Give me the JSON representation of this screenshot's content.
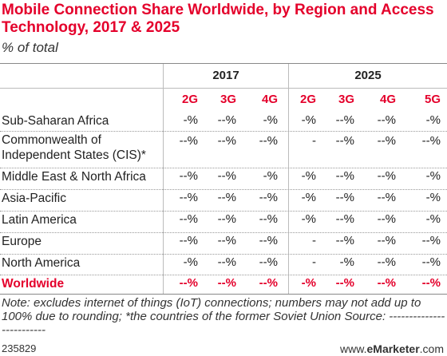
{
  "header": {
    "title": "Mobile Connection Share Worldwide, by Region and Access Technology, 2017 & 2025",
    "subtitle": "% of total"
  },
  "table": {
    "years": [
      "2017",
      "2025"
    ],
    "columns": [
      "2G",
      "3G",
      "4G",
      "2G",
      "3G",
      "4G",
      "5G"
    ],
    "rows": [
      {
        "label": "Sub-Saharan Africa",
        "cells": [
          "-%",
          "--%",
          "-%",
          "-%",
          "--%",
          "--%",
          "-%"
        ]
      },
      {
        "label": "Commonwealth of Independent States (CIS)*",
        "cells": [
          "--%",
          "--%",
          "--%",
          "-",
          "--%",
          "--%",
          "--%"
        ]
      },
      {
        "label": "Middle East & North Africa",
        "cells": [
          "--%",
          "--%",
          "-%",
          "-%",
          "--%",
          "--%",
          "-%"
        ]
      },
      {
        "label": "Asia-Pacific",
        "cells": [
          "--%",
          "--%",
          "--%",
          "-%",
          "--%",
          "--%",
          "-%"
        ]
      },
      {
        "label": "Latin America",
        "cells": [
          "--%",
          "--%",
          "--%",
          "-%",
          "--%",
          "--%",
          "-%"
        ]
      },
      {
        "label": "Europe",
        "cells": [
          "--%",
          "--%",
          "--%",
          "-",
          "--%",
          "--%",
          "--%"
        ]
      },
      {
        "label": "North America",
        "cells": [
          "-%",
          "--%",
          "--%",
          "-",
          "-%",
          "--%",
          "--%"
        ]
      },
      {
        "label": "Worldwide",
        "cells": [
          "--%",
          "--%",
          "--%",
          "-%",
          "--%",
          "--%",
          "--%"
        ]
      }
    ]
  },
  "note": "Note: excludes internet of things (IoT) connections; numbers may not add up to 100% due to rounding; *the countries of the former Soviet Union",
  "source": "Source: -------------------------",
  "footer": {
    "id": "235829",
    "site_prefix": "www.",
    "site_brand": "eMarketer",
    "site_suffix": ".com"
  }
}
